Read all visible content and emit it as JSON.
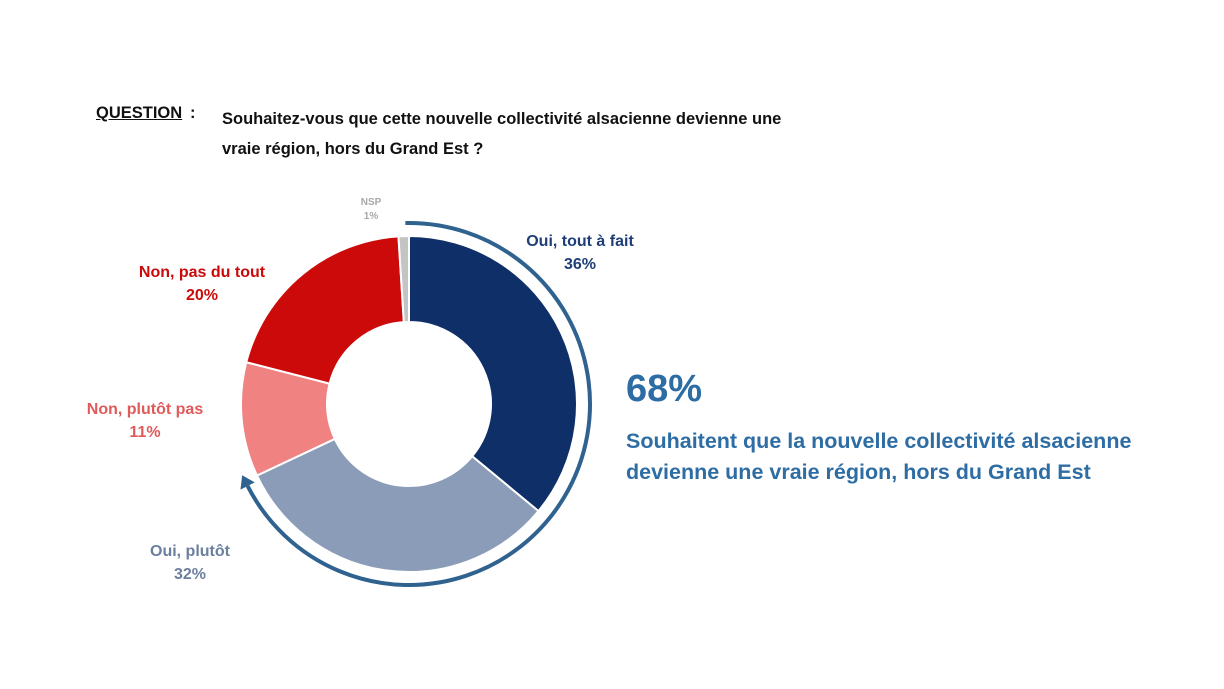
{
  "question": {
    "label": "QUESTION",
    "colon": ":",
    "text": "Souhaitez-vous que cette nouvelle collectivité alsacienne devienne une vraie région, hors du Grand Est ?"
  },
  "chart_data": {
    "type": "pie",
    "donut": true,
    "start": "top, clockwise",
    "slices": [
      {
        "name": "Oui, tout à fait",
        "value": 36,
        "label": "36%",
        "color": "#0f2f68"
      },
      {
        "name": "Oui, plutôt",
        "value": 32,
        "label": "32%",
        "color": "#8b9cb8"
      },
      {
        "name": "Non, plutôt pas",
        "value": 11,
        "label": "11%",
        "color": "#f08282"
      },
      {
        "name": "Non, pas du tout",
        "value": 20,
        "label": "20%",
        "color": "#cc0a0a"
      },
      {
        "name": "NSP",
        "value": 1,
        "label": "1%",
        "color": "#c4c4c4"
      }
    ],
    "highlight": {
      "value": "68%",
      "text": "Souhaitent que la nouvelle collectivité alsacienne devienne une vraie région, hors du Grand Est",
      "color": "#2e6da4"
    }
  }
}
